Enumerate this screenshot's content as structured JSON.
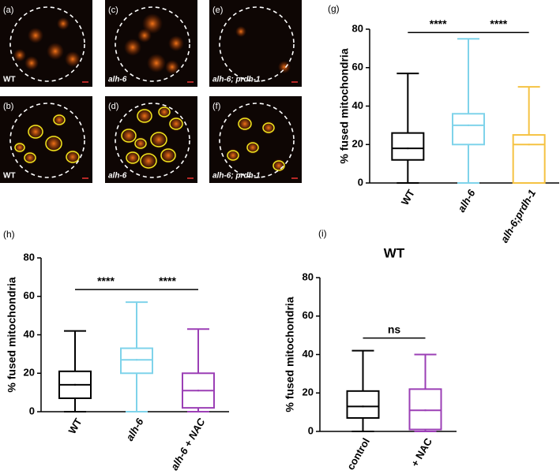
{
  "images": [
    {
      "panel": "(a)",
      "label": "WT"
    },
    {
      "panel": "(c)",
      "label": "alh-6"
    },
    {
      "panel": "(e)",
      "label": "alh-6; prdh-1"
    },
    {
      "panel": "(b)",
      "label": "WT"
    },
    {
      "panel": "(d)",
      "label": "alh-6"
    },
    {
      "panel": "(f)",
      "label": "alh-6; prdh-1"
    }
  ],
  "chart_data": [
    {
      "type": "box",
      "panel": "(g)",
      "y_label": "% fused mitochondria",
      "categories": [
        "WT",
        "alh-6",
        "alh-6;prdh-1"
      ],
      "boxes": [
        {
          "min": 0,
          "q1": 12,
          "median": 18,
          "q3": 26,
          "max": 57,
          "color": "#000000"
        },
        {
          "min": 0,
          "q1": 20,
          "median": 30,
          "q3": 36,
          "max": 75,
          "color": "#7fd3ea"
        },
        {
          "min": 0,
          "q1": 0,
          "median": 20,
          "q3": 25,
          "max": 50,
          "color": "#f5c242"
        }
      ],
      "ylim": [
        0,
        80
      ],
      "yticks": [
        0,
        20,
        40,
        60,
        80
      ],
      "comparisons": [
        {
          "between": [
            0,
            1
          ],
          "label": "****"
        },
        {
          "between": [
            1,
            2
          ],
          "label": "****"
        }
      ]
    },
    {
      "type": "box",
      "panel": "(h)",
      "y_label": "% fused mitochondria",
      "categories": [
        "WT",
        "alh-6",
        "alh-6 + NAC"
      ],
      "boxes": [
        {
          "min": 0,
          "q1": 7,
          "median": 14,
          "q3": 21,
          "max": 42,
          "color": "#000000"
        },
        {
          "min": 0,
          "q1": 20,
          "median": 27,
          "q3": 33,
          "max": 57,
          "color": "#7fd3ea"
        },
        {
          "min": 0,
          "q1": 2,
          "median": 11,
          "q3": 20,
          "max": 43,
          "color": "#9b3fb5"
        }
      ],
      "ylim": [
        0,
        80
      ],
      "yticks": [
        0,
        20,
        40,
        60,
        80
      ],
      "comparisons": [
        {
          "between": [
            0,
            1
          ],
          "label": "****"
        },
        {
          "between": [
            1,
            2
          ],
          "label": "****"
        }
      ]
    },
    {
      "type": "box",
      "panel": "(i)",
      "title": "WT",
      "y_label": "% fused mitochondria",
      "categories": [
        "control",
        "+ NAC"
      ],
      "boxes": [
        {
          "min": 0,
          "q1": 7,
          "median": 13,
          "q3": 21,
          "max": 42,
          "color": "#000000"
        },
        {
          "min": 0,
          "q1": 1,
          "median": 11,
          "q3": 22,
          "max": 40,
          "color": "#9b3fb5"
        }
      ],
      "ylim": [
        0,
        80
      ],
      "yticks": [
        0,
        20,
        40,
        60,
        80
      ],
      "comparisons": [
        {
          "between": [
            0,
            1
          ],
          "label": "ns"
        }
      ]
    }
  ]
}
